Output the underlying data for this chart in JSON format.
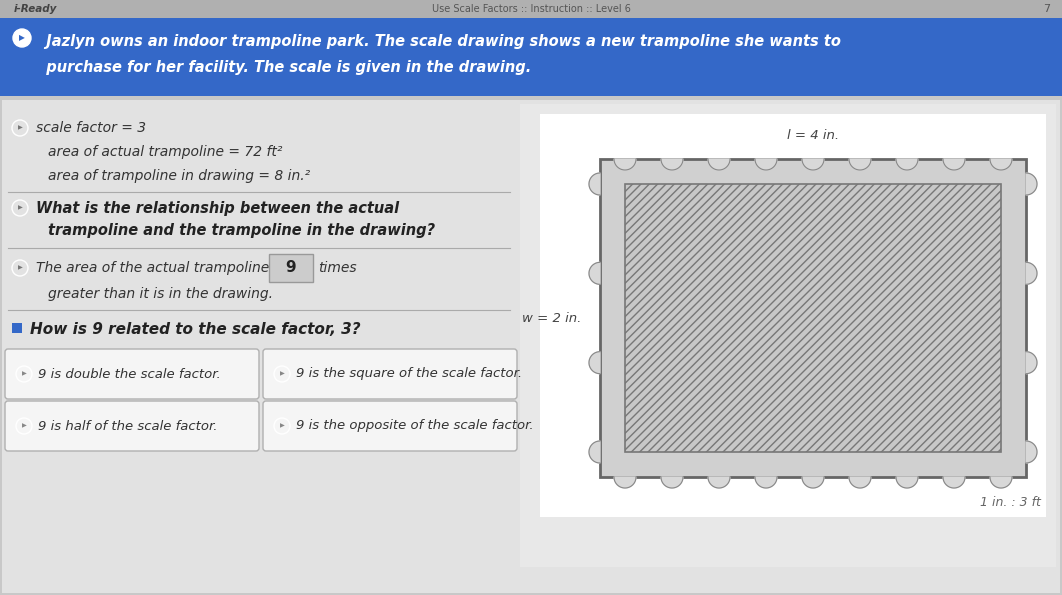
{
  "header_bg": "#3468c8",
  "header_text_color": "#ffffff",
  "body_bg": "#c8c8c8",
  "panel_bg": "#e2e2e2",
  "nav_bg": "#b0b0b0",
  "info_lines": [
    "scale factor = 3",
    "area of actual trampoline = 72 ft²",
    "area of trampoline in drawing = 8 in.²"
  ],
  "question1_bold": "What is the relationship between the actual\ntrampoline and the trampoline in the drawing?",
  "answer_fill": "9",
  "question2_bold": "How is 9 related to the scale factor, 3?",
  "trampoline_label_top": "l = 4 in.",
  "trampoline_label_left": "w = 2 in.",
  "trampoline_scale_note": "1 in. : 3 ft",
  "choice_buttons": [
    [
      "9 is double the scale factor.",
      "9 is the square of the scale factor."
    ],
    [
      "9 is half of the scale factor.",
      "9 is the opposite of the scale factor."
    ]
  ],
  "button_bg": "#f5f5f5",
  "button_border": "#b0b0b0",
  "site_name": "i-Ready",
  "header_top_text": "Use Scale Factors :: Instruction :: Level 6",
  "header_main_line1": "  Jazlyn owns an indoor trampoline park. The scale drawing shows a new trampoline she wants to",
  "header_main_line2": "  purchase for her facility. The scale is given in the drawing."
}
